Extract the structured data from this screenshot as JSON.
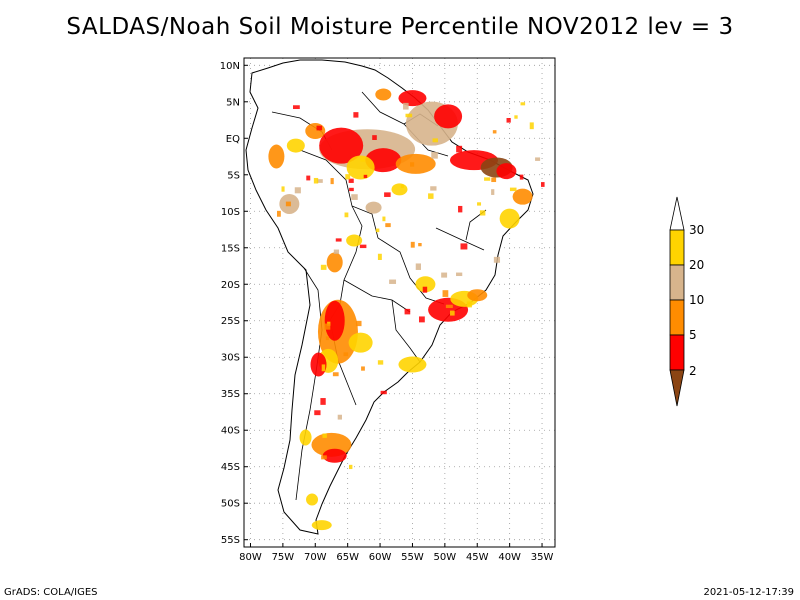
{
  "title": "SALDAS/Noah Soil Moisture Percentile NOV2012 lev = 3",
  "map": {
    "lat_labels": [
      "10N",
      "5N",
      "EQ",
      "5S",
      "10S",
      "15S",
      "20S",
      "25S",
      "30S",
      "35S",
      "40S",
      "45S",
      "50S",
      "55S"
    ],
    "lon_labels": [
      "80W",
      "75W",
      "70W",
      "65W",
      "60W",
      "55W",
      "50W",
      "45W",
      "40W",
      "35W"
    ],
    "lat_range": [
      -56,
      11
    ],
    "lon_range": [
      -81,
      -33
    ]
  },
  "colorbar": {
    "labels": [
      "30",
      "20",
      "10",
      "5",
      "2"
    ],
    "colors": [
      "#ffffff",
      "#ffd400",
      "#d7b48c",
      "#ff8c00",
      "#ff0000",
      "#8b4513"
    ]
  },
  "palette": {
    "yellow": "#ffd400",
    "tan": "#d7b48c",
    "orange": "#ff8c00",
    "red": "#ff0000",
    "brown": "#8b4513"
  },
  "footer": {
    "left": "GrADS: COLA/IGES",
    "right": "2021-05-12-17:39"
  }
}
